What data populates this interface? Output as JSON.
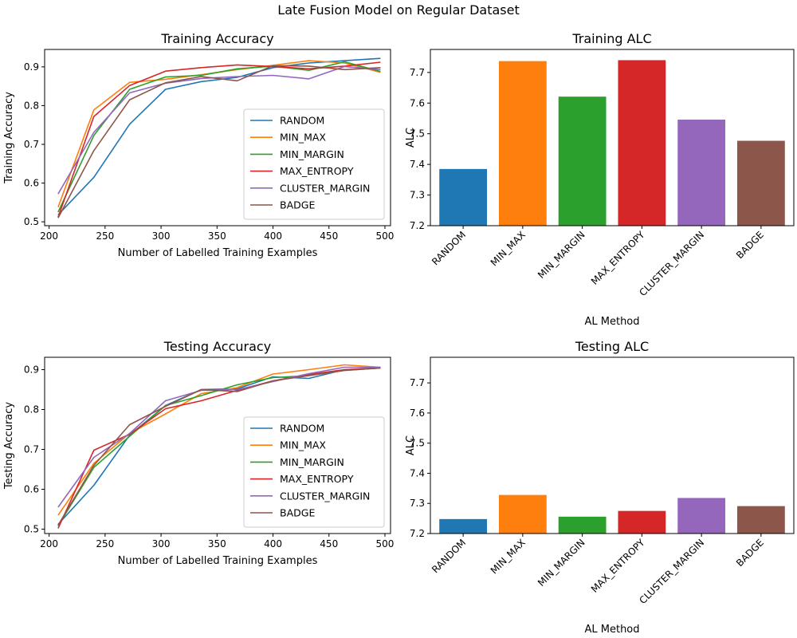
{
  "figure": {
    "title": "Late Fusion Model on Regular Dataset"
  },
  "colors": [
    "#1f77b4",
    "#ff7f0e",
    "#2ca02c",
    "#d62728",
    "#9467bd",
    "#8c564b"
  ],
  "chart_data": [
    {
      "type": "line",
      "title": "Training Accuracy",
      "xlabel": "Number of Labelled Training Examples",
      "ylabel": "Training Accuracy",
      "xlim": [
        196,
        505
      ],
      "ylim": [
        0.49,
        0.945
      ],
      "xticks": [
        200,
        250,
        300,
        350,
        400,
        450,
        500
      ],
      "yticks": [
        0.5,
        0.6,
        0.7,
        0.8,
        0.9
      ],
      "legend": "lower-right",
      "x": [
        208,
        240,
        272,
        304,
        336,
        368,
        400,
        432,
        464,
        496
      ],
      "series": [
        {
          "name": "RANDOM",
          "values": [
            0.518,
            0.615,
            0.752,
            0.842,
            0.862,
            0.873,
            0.898,
            0.91,
            0.916,
            0.922
          ]
        },
        {
          "name": "MIN_MAX",
          "values": [
            0.538,
            0.789,
            0.86,
            0.868,
            0.88,
            0.893,
            0.904,
            0.916,
            0.91,
            0.886
          ]
        },
        {
          "name": "MIN_MARGIN",
          "values": [
            0.525,
            0.723,
            0.842,
            0.874,
            0.878,
            0.895,
            0.902,
            0.891,
            0.913,
            0.888
          ]
        },
        {
          "name": "MAX_ENTROPY",
          "values": [
            0.512,
            0.772,
            0.852,
            0.889,
            0.898,
            0.905,
            0.901,
            0.895,
            0.902,
            0.912
          ]
        },
        {
          "name": "CLUSTER_MARGIN",
          "values": [
            0.572,
            0.731,
            0.833,
            0.858,
            0.87,
            0.875,
            0.878,
            0.869,
            0.901,
            0.893
          ]
        },
        {
          "name": "BADGE",
          "values": [
            0.51,
            0.684,
            0.815,
            0.859,
            0.875,
            0.864,
            0.903,
            0.902,
            0.893,
            0.898
          ]
        }
      ]
    },
    {
      "type": "bar",
      "title": "Training ALC",
      "xlabel": "AL Method",
      "ylabel": "ALC",
      "ylim": [
        7.2,
        7.775
      ],
      "yticks": [
        7.2,
        7.3,
        7.4,
        7.5,
        7.6,
        7.7
      ],
      "categories": [
        "RANDOM",
        "MIN_MAX",
        "MIN_MARGIN",
        "MAX_ENTROPY",
        "CLUSTER_MARGIN",
        "BADGE"
      ],
      "values": [
        7.385,
        7.737,
        7.621,
        7.74,
        7.546,
        7.477
      ]
    },
    {
      "type": "line",
      "title": "Testing Accuracy",
      "xlabel": "Number of Labelled Training Examples",
      "ylabel": "Testing Accuracy",
      "xlim": [
        196,
        505
      ],
      "ylim": [
        0.489,
        0.931
      ],
      "xticks": [
        200,
        250,
        300,
        350,
        400,
        450,
        500
      ],
      "yticks": [
        0.5,
        0.6,
        0.7,
        0.8,
        0.9
      ],
      "legend": "lower-right",
      "x": [
        208,
        240,
        272,
        304,
        336,
        368,
        400,
        432,
        464,
        496
      ],
      "series": [
        {
          "name": "RANDOM",
          "values": [
            0.512,
            0.61,
            0.736,
            0.81,
            0.85,
            0.852,
            0.882,
            0.878,
            0.9,
            0.905
          ]
        },
        {
          "name": "MIN_MAX",
          "values": [
            0.535,
            0.665,
            0.74,
            0.789,
            0.84,
            0.855,
            0.889,
            0.9,
            0.912,
            0.906
          ]
        },
        {
          "name": "MIN_MARGIN",
          "values": [
            0.508,
            0.655,
            0.733,
            0.81,
            0.835,
            0.862,
            0.88,
            0.885,
            0.898,
            0.904
          ]
        },
        {
          "name": "MAX_ENTROPY",
          "values": [
            0.502,
            0.698,
            0.738,
            0.802,
            0.822,
            0.848,
            0.872,
            0.888,
            0.9,
            0.904
          ]
        },
        {
          "name": "CLUSTER_MARGIN",
          "values": [
            0.555,
            0.68,
            0.74,
            0.822,
            0.848,
            0.85,
            0.87,
            0.89,
            0.906,
            0.906
          ]
        },
        {
          "name": "BADGE",
          "values": [
            0.51,
            0.66,
            0.762,
            0.808,
            0.85,
            0.845,
            0.872,
            0.885,
            0.898,
            0.904
          ]
        }
      ]
    },
    {
      "type": "bar",
      "title": "Testing ALC",
      "xlabel": "AL Method",
      "ylabel": "ALC",
      "ylim": [
        7.2,
        7.785
      ],
      "yticks": [
        7.2,
        7.3,
        7.4,
        7.5,
        7.6,
        7.7
      ],
      "categories": [
        "RANDOM",
        "MIN_MAX",
        "MIN_MARGIN",
        "MAX_ENTROPY",
        "CLUSTER_MARGIN",
        "BADGE"
      ],
      "values": [
        7.248,
        7.328,
        7.256,
        7.275,
        7.318,
        7.291
      ]
    }
  ]
}
